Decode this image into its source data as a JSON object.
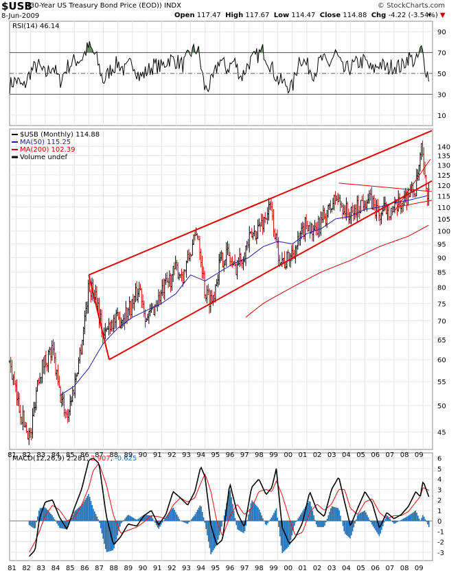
{
  "header": {
    "symbol": "$USB",
    "description": "(30-Year US Treasury Bond Price (EOD)) INDX",
    "watermark": "© StockCharts.com",
    "date": "8-Jun-2009",
    "open_label": "Open",
    "open": "117.47",
    "high_label": "High",
    "high": "117.67",
    "low_label": "Low",
    "low": "114.47",
    "close_label": "Close",
    "close": "114.88",
    "chg_label": "Chg",
    "chg": "-4.22 (-3.54%)",
    "chg_arrow": "▼",
    "dropdown_icon": "▾"
  },
  "colors": {
    "up": "#000000",
    "down": "#cc0000",
    "ma50": "#1c1c9c",
    "ma200": "#cc0000",
    "trend": "#e00000",
    "hist": "#1f6fb4",
    "signal": "#e02020"
  },
  "chart_data": [
    {
      "type": "line",
      "panel": "rsi",
      "legend": "RSI(14) 46.14",
      "y_ticks": [
        10,
        30,
        50,
        70,
        90
      ],
      "ylim": [
        0,
        100
      ],
      "reference_lines": [
        30,
        50,
        70
      ],
      "x": [
        1980.5,
        1981,
        1981.5,
        1982,
        1982.5,
        1983,
        1983.5,
        1984,
        1984.5,
        1985,
        1985.5,
        1986,
        1986.5,
        1987,
        1987.5,
        1988,
        1988.5,
        1989,
        1989.5,
        1990,
        1990.5,
        1991,
        1991.5,
        1992,
        1992.5,
        1993,
        1993.5,
        1994,
        1994.5,
        1995,
        1995.5,
        1996,
        1996.5,
        1997,
        1997.5,
        1998,
        1998.5,
        1999,
        1999.5,
        2000,
        2000.5,
        2001,
        2001.5,
        2002,
        2002.5,
        2003,
        2003.5,
        2004,
        2004.5,
        2005,
        2005.5,
        2006,
        2006.5,
        2007,
        2007.5,
        2008,
        2008.5,
        2008.9,
        2009.1,
        2009.4
      ],
      "values": [
        38,
        44,
        36,
        52,
        58,
        48,
        58,
        42,
        56,
        62,
        64,
        76,
        66,
        42,
        54,
        60,
        52,
        62,
        46,
        52,
        58,
        56,
        64,
        62,
        58,
        70,
        74,
        34,
        42,
        64,
        54,
        62,
        46,
        60,
        66,
        72,
        58,
        44,
        40,
        36,
        66,
        58,
        50,
        64,
        58,
        70,
        52,
        56,
        60,
        62,
        52,
        60,
        54,
        58,
        56,
        66,
        60,
        74,
        58,
        46
      ]
    },
    {
      "type": "ohlc",
      "panel": "price",
      "title": "$USB (Monthly) 114.88",
      "legend": [
        "$USB (Monthly) 114.88",
        "MA(50) 115.25",
        "MA(200) 102.39",
        "Volume undef"
      ],
      "y_scale": "log",
      "y_ticks": [
        45,
        50,
        55,
        60,
        65,
        70,
        75,
        80,
        85,
        90,
        95,
        100,
        105,
        110,
        115,
        120,
        125,
        130,
        135,
        140
      ],
      "x_labels": [
        "81",
        "82",
        "83",
        "84",
        "85",
        "86",
        "87",
        "88",
        "89",
        "90",
        "91",
        "92",
        "93",
        "94",
        "95",
        "96",
        "97",
        "98",
        "99",
        "00",
        "01",
        "02",
        "03",
        "04",
        "05",
        "06",
        "07",
        "08",
        "09"
      ],
      "anchors_x": [
        1980.5,
        1981,
        1981.5,
        1982,
        1982.5,
        1983,
        1983.5,
        1984,
        1984.5,
        1985,
        1985.5,
        1986,
        1986.5,
        1987,
        1987.5,
        1988,
        1988.5,
        1989,
        1989.5,
        1990,
        1990.5,
        1991,
        1991.5,
        1992,
        1992.5,
        1993,
        1993.5,
        1994,
        1994.5,
        1995,
        1995.5,
        1996,
        1996.5,
        1997,
        1997.5,
        1998,
        1998.5,
        1999,
        1999.5,
        2000,
        2000.5,
        2001,
        2001.5,
        2002,
        2002.5,
        2003,
        2003.5,
        2004,
        2004.5,
        2005,
        2005.5,
        2006,
        2006.5,
        2007,
        2007.5,
        2008,
        2008.5,
        2008.9,
        2009.1,
        2009.4
      ],
      "anchors_close": [
        60,
        52,
        47,
        44,
        56,
        60,
        62,
        52,
        48,
        54,
        64,
        80,
        78,
        65,
        70,
        70,
        72,
        75,
        80,
        70,
        74,
        78,
        82,
        86,
        84,
        92,
        100,
        78,
        76,
        88,
        92,
        86,
        90,
        96,
        100,
        104,
        110,
        92,
        88,
        92,
        96,
        104,
        98,
        104,
        108,
        114,
        110,
        106,
        110,
        114,
        112,
        106,
        110,
        108,
        112,
        116,
        118,
        138,
        122,
        114.88
      ],
      "ma50": {
        "x": [
          1984.0,
          1985,
          1986,
          1987,
          1988,
          1989,
          1990,
          1991,
          1992,
          1993,
          1994,
          1995,
          1996,
          1997,
          1998,
          1999,
          2000,
          2001,
          2002,
          2003,
          2004,
          2005,
          2006,
          2007,
          2008,
          2009.4
        ],
        "values": [
          52,
          54,
          58,
          64,
          68,
          71,
          73,
          75,
          78,
          84,
          82,
          85,
          88,
          90,
          94,
          96,
          95,
          99,
          101,
          105,
          106,
          109,
          110,
          112,
          113,
          115.25
        ]
      },
      "ma200": {
        "x": [
          1996.8,
          1998,
          2000,
          2002,
          2004,
          2006,
          2008,
          2009.4
        ],
        "values": [
          71,
          75,
          80,
          85,
          89,
          94,
          98,
          102.39
        ]
      },
      "trendlines": [
        {
          "x": [
            1986.0,
            2009.6
          ],
          "values": [
            84,
            149
          ]
        },
        {
          "x": [
            1987.4,
            2009.6
          ],
          "values": [
            60,
            122
          ]
        },
        {
          "x": [
            1987.4,
            1986.0
          ],
          "values": [
            60,
            84
          ]
        },
        {
          "x": [
            2003.2,
            2009.6
          ],
          "values": [
            121,
            117
          ]
        },
        {
          "x": [
            2007.0,
            2009.5
          ],
          "values": [
            108,
            133
          ]
        },
        {
          "x": [
            2007.2,
            2009.6
          ],
          "values": [
            110,
            113
          ]
        }
      ]
    },
    {
      "type": "macd",
      "panel": "macd",
      "legend_label": "MACD(12,26,9)",
      "macd_value": "2.281",
      "signal_value": "2.907",
      "hist_value": "-0.625",
      "y_ticks": [
        -3,
        -2,
        -1,
        0,
        1,
        2,
        3,
        4,
        5,
        6
      ],
      "ylim": [
        -3.8,
        6.5
      ],
      "x": [
        1981.9,
        1982.3,
        1982.6,
        1983,
        1983.5,
        1984,
        1984.5,
        1985,
        1985.5,
        1986,
        1986.3,
        1986.7,
        1987.2,
        1987.7,
        1988.2,
        1988.7,
        1989.3,
        1989.8,
        1990.3,
        1990.8,
        1991.3,
        1991.8,
        1992.3,
        1992.8,
        1993.3,
        1993.7,
        1994.0,
        1994.4,
        1994.8,
        1995.2,
        1995.7,
        1996.2,
        1996.7,
        1997.2,
        1997.7,
        1998.2,
        1998.6,
        1998.9,
        1999.3,
        1999.8,
        2000.2,
        2000.7,
        2001.2,
        2001.7,
        2002.2,
        2002.7,
        2003.2,
        2003.6,
        2004.0,
        2004.5,
        2005.0,
        2005.5,
        2006.0,
        2006.5,
        2007.0,
        2007.5,
        2008.0,
        2008.5,
        2008.8,
        2009.0,
        2009.4
      ],
      "macd": [
        -3.4,
        -2.8,
        0.2,
        1.8,
        2.0,
        0.3,
        -0.8,
        1.2,
        3.0,
        5.8,
        6.0,
        5.5,
        0.5,
        -2.3,
        -1.5,
        -0.3,
        -0.5,
        0.5,
        1.0,
        -0.4,
        0.6,
        2.8,
        2.2,
        1.5,
        2.8,
        5.2,
        4.2,
        -0.4,
        -2.3,
        -1.8,
        3.6,
        0.8,
        -0.6,
        3.2,
        4.0,
        2.5,
        3.2,
        5.0,
        -0.6,
        -2.2,
        -1.6,
        -0.2,
        2.8,
        1.0,
        0.4,
        3.0,
        4.2,
        1.8,
        -0.5,
        1.2,
        2.8,
        1.7,
        -0.7,
        0.8,
        0.2,
        0.6,
        1.4,
        2.8,
        2.3,
        3.8,
        2.3
      ],
      "signal": [
        -3.0,
        -2.0,
        -1.0,
        0.5,
        1.5,
        1.0,
        0.0,
        0.3,
        1.5,
        3.2,
        4.8,
        5.5,
        3.5,
        0.5,
        -1.2,
        -0.9,
        -0.6,
        -0.1,
        0.5,
        0.4,
        0.2,
        1.5,
        2.2,
        1.8,
        2.2,
        3.6,
        4.5,
        2.8,
        0.0,
        -1.5,
        0.4,
        1.6,
        0.6,
        1.2,
        2.8,
        3.0,
        2.8,
        3.8,
        2.5,
        0.2,
        -1.4,
        -1.1,
        0.8,
        1.6,
        1.0,
        1.6,
        3.0,
        3.0,
        1.2,
        0.6,
        1.8,
        2.1,
        0.8,
        0.2,
        0.5,
        0.5,
        0.9,
        1.8,
        2.3,
        3.2,
        2.9
      ]
    }
  ]
}
